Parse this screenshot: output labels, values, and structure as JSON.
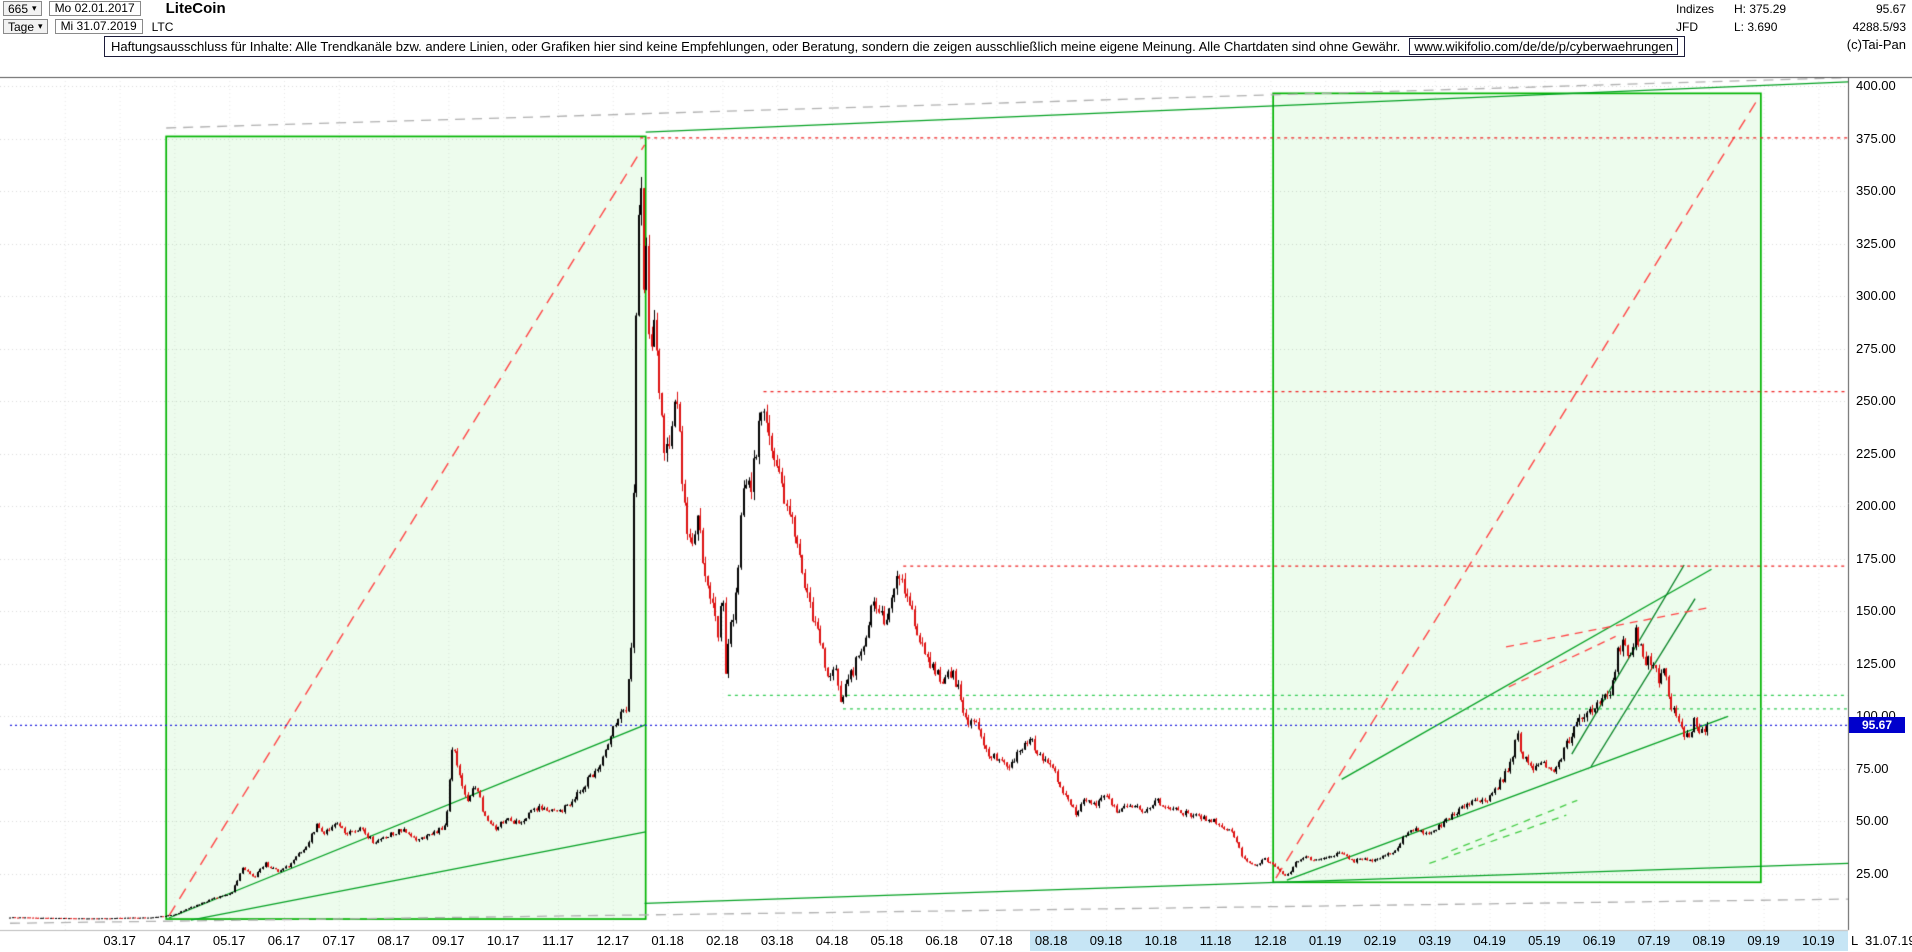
{
  "header": {
    "bars_count": "665",
    "start_date": "Mo 02.01.2017",
    "period": "Tage",
    "end_date": "Mi 31.07.2019",
    "symbol": "LTC",
    "instrument_name": "LiteCoin",
    "category": "Indizes",
    "high": "H: 375.29",
    "last_price": "95.67",
    "feed": "JFD",
    "low": "L: 3.690",
    "extra": "4288.5/93",
    "copyright": "(c)Tai-Pan"
  },
  "icons": {
    "chevron_down": "▾"
  },
  "disclaimer": {
    "text": "Haftungsausschluss für Inhalte: Alle Trendkanäle bzw. andere Linien, oder Grafiken hier sind keine Empfehlungen, oder Beratung, sondern die zeigen ausschließlich meine eigene Meinung. Alle Chartdaten sind ohne Gewähr.",
    "url": "www.wikifolio.com/de/de/p/cyberwaehrungen"
  },
  "footer": {
    "last_label": "L  31.07.19"
  },
  "chart_data": {
    "type": "candlestick",
    "title": "LiteCoin (LTC) Tageschart 02.01.2017 - 31.07.2019",
    "instrument": "LiteCoin",
    "symbol": "LTC",
    "period": "Tage",
    "bar_count": 665,
    "high": 375.29,
    "low": 3.69,
    "last_price": 95.67,
    "last_price_label": "95.67",
    "y_axis": {
      "min": 25,
      "max": 400,
      "step": 25,
      "ticks": [
        400,
        375,
        350,
        325,
        300,
        275,
        250,
        225,
        200,
        175,
        150,
        125,
        100,
        75,
        50,
        25
      ]
    },
    "x_axis": {
      "labels": [
        "03.17",
        "04.17",
        "05.17",
        "06.17",
        "07.17",
        "08.17",
        "09.17",
        "10.17",
        "11.17",
        "12.17",
        "01.18",
        "02.18",
        "03.18",
        "04.18",
        "05.18",
        "06.18",
        "07.18",
        "08.18",
        "09.18",
        "10.18",
        "11.18",
        "12.18",
        "01.19",
        "02.19",
        "03.19",
        "04.19",
        "05.19",
        "06.19",
        "07.19",
        "08.19",
        "09.19",
        "10.19"
      ],
      "first_label_month_index": 2,
      "highlight_start_month": 18.62
    },
    "price_path": [
      [
        0,
        4.3
      ],
      [
        0.5,
        4.1
      ],
      [
        1,
        3.9
      ],
      [
        1.5,
        3.75
      ],
      [
        2,
        4
      ],
      [
        2.6,
        4.3
      ],
      [
        3,
        5.5
      ],
      [
        3.2,
        8
      ],
      [
        3.5,
        11
      ],
      [
        3.8,
        14
      ],
      [
        4.05,
        16
      ],
      [
        4.25,
        28
      ],
      [
        4.45,
        23
      ],
      [
        4.65,
        30
      ],
      [
        4.9,
        26
      ],
      [
        5.1,
        29
      ],
      [
        5.4,
        38
      ],
      [
        5.6,
        48
      ],
      [
        5.75,
        44
      ],
      [
        5.95,
        50
      ],
      [
        6.15,
        44
      ],
      [
        6.4,
        46
      ],
      [
        6.65,
        40
      ],
      [
        6.9,
        43
      ],
      [
        7.15,
        46
      ],
      [
        7.4,
        41
      ],
      [
        7.7,
        44
      ],
      [
        7.95,
        48
      ],
      [
        8.08,
        86
      ],
      [
        8.2,
        72
      ],
      [
        8.35,
        60
      ],
      [
        8.5,
        68
      ],
      [
        8.65,
        54
      ],
      [
        8.85,
        47
      ],
      [
        9.05,
        51
      ],
      [
        9.3,
        49
      ],
      [
        9.55,
        56
      ],
      [
        9.75,
        57
      ],
      [
        10,
        54
      ],
      [
        10.3,
        61
      ],
      [
        10.55,
        70
      ],
      [
        10.75,
        74
      ],
      [
        10.95,
        92
      ],
      [
        11.1,
        100
      ],
      [
        11.25,
        105
      ],
      [
        11.35,
        142
      ],
      [
        11.42,
        290
      ],
      [
        11.5,
        375
      ],
      [
        11.56,
        305
      ],
      [
        11.62,
        330
      ],
      [
        11.68,
        265
      ],
      [
        11.75,
        288
      ],
      [
        11.85,
        248
      ],
      [
        11.95,
        228
      ],
      [
        12.05,
        235
      ],
      [
        12.12,
        252
      ],
      [
        12.2,
        238
      ],
      [
        12.35,
        188
      ],
      [
        12.45,
        178
      ],
      [
        12.55,
        196
      ],
      [
        12.65,
        172
      ],
      [
        12.8,
        158
      ],
      [
        12.92,
        136
      ],
      [
        13,
        162
      ],
      [
        13.06,
        118
      ],
      [
        13.12,
        136
      ],
      [
        13.25,
        158
      ],
      [
        13.4,
        218
      ],
      [
        13.5,
        207
      ],
      [
        13.62,
        228
      ],
      [
        13.72,
        252
      ],
      [
        13.78,
        240
      ],
      [
        13.9,
        222
      ],
      [
        14.05,
        212
      ],
      [
        14.2,
        198
      ],
      [
        14.35,
        182
      ],
      [
        14.55,
        158
      ],
      [
        14.75,
        138
      ],
      [
        14.95,
        118
      ],
      [
        15.05,
        122
      ],
      [
        15.15,
        108
      ],
      [
        15.3,
        116
      ],
      [
        15.45,
        126
      ],
      [
        15.6,
        138
      ],
      [
        15.75,
        152
      ],
      [
        15.95,
        146
      ],
      [
        16.1,
        155
      ],
      [
        16.25,
        170
      ],
      [
        16.4,
        152
      ],
      [
        16.6,
        138
      ],
      [
        16.8,
        124
      ],
      [
        17,
        118
      ],
      [
        17.2,
        122
      ],
      [
        17.45,
        99
      ],
      [
        17.65,
        95
      ],
      [
        17.85,
        83
      ],
      [
        18.05,
        79
      ],
      [
        18.25,
        76
      ],
      [
        18.45,
        84
      ],
      [
        18.65,
        88
      ],
      [
        18.85,
        79
      ],
      [
        19.05,
        75
      ],
      [
        19.25,
        62
      ],
      [
        19.45,
        54
      ],
      [
        19.6,
        60
      ],
      [
        19.8,
        57
      ],
      [
        20,
        63
      ],
      [
        20.2,
        54
      ],
      [
        20.45,
        58
      ],
      [
        20.7,
        54
      ],
      [
        20.9,
        60
      ],
      [
        21.1,
        57
      ],
      [
        21.4,
        54
      ],
      [
        21.7,
        52
      ],
      [
        22,
        50
      ],
      [
        22.3,
        44
      ],
      [
        22.5,
        33
      ],
      [
        22.7,
        29
      ],
      [
        22.9,
        32
      ],
      [
        23.1,
        28
      ],
      [
        23.3,
        23.5
      ],
      [
        23.45,
        30
      ],
      [
        23.65,
        33
      ],
      [
        23.85,
        31
      ],
      [
        24.1,
        33
      ],
      [
        24.3,
        35
      ],
      [
        24.5,
        31
      ],
      [
        24.7,
        32
      ],
      [
        24.9,
        31.5
      ],
      [
        25.1,
        34
      ],
      [
        25.3,
        36
      ],
      [
        25.45,
        44
      ],
      [
        25.65,
        46
      ],
      [
        25.85,
        44
      ],
      [
        26.05,
        47
      ],
      [
        26.25,
        51
      ],
      [
        26.45,
        56
      ],
      [
        26.65,
        59
      ],
      [
        26.85,
        60
      ],
      [
        27.05,
        62
      ],
      [
        27.25,
        71
      ],
      [
        27.4,
        79
      ],
      [
        27.5,
        92
      ],
      [
        27.6,
        81
      ],
      [
        27.8,
        74
      ],
      [
        28,
        77
      ],
      [
        28.2,
        73
      ],
      [
        28.4,
        86
      ],
      [
        28.6,
        96
      ],
      [
        28.8,
        101
      ],
      [
        29,
        106
      ],
      [
        29.2,
        112
      ],
      [
        29.35,
        131
      ],
      [
        29.45,
        137
      ],
      [
        29.55,
        124
      ],
      [
        29.65,
        141
      ],
      [
        29.75,
        133
      ],
      [
        29.85,
        127
      ],
      [
        30,
        124
      ],
      [
        30.1,
        117
      ],
      [
        30.2,
        121
      ],
      [
        30.32,
        104
      ],
      [
        30.45,
        98
      ],
      [
        30.55,
        92
      ],
      [
        30.65,
        89
      ],
      [
        30.75,
        98
      ],
      [
        30.85,
        91
      ],
      [
        30.97,
        95.67
      ]
    ],
    "overlays": {
      "boxes": [
        {
          "m1": 2.85,
          "p1": 3.5,
          "m2": 11.6,
          "p2": 376
        },
        {
          "m1": 23.05,
          "p1": 21,
          "m2": 31.95,
          "p2": 396.5
        }
      ],
      "lines": [
        {
          "m1": 2.9,
          "p1": 5,
          "m2": 11.58,
          "p2": 372,
          "color": "#ff4444",
          "dash": [
            12,
            8
          ],
          "w": 1.4
        },
        {
          "m1": 23.1,
          "p1": 23,
          "m2": 31.9,
          "p2": 394,
          "color": "#ff4444",
          "dash": [
            12,
            8
          ],
          "w": 1.4
        },
        {
          "m1": 2.85,
          "p1": 380,
          "m2": 33.55,
          "p2": 404,
          "color": "#b0b0b0",
          "dash": [
            10,
            7
          ],
          "w": 1.3
        },
        {
          "m1": 0,
          "p1": 1.5,
          "m2": 33.55,
          "p2": 13,
          "color": "#b0b0b0",
          "dash": [
            10,
            7
          ],
          "w": 1.3
        },
        {
          "m1": 11.6,
          "p1": 378,
          "m2": 33.55,
          "p2": 402,
          "color": "#00a020",
          "w": 1.3
        },
        {
          "m1": 11.58,
          "p1": 11,
          "m2": 33.55,
          "p2": 30,
          "color": "#00a020",
          "w": 1.3
        },
        {
          "m1": 2.9,
          "p1": 4,
          "m2": 11.6,
          "p2": 96,
          "color": "#00a020",
          "w": 1.3
        },
        {
          "m1": 3.3,
          "p1": 3,
          "m2": 11.6,
          "p2": 45,
          "color": "#00a020",
          "w": 1.3
        },
        {
          "m1": 24.3,
          "p1": 70,
          "m2": 31.05,
          "p2": 170,
          "color": "#00a020",
          "w": 1.3
        },
        {
          "m1": 23.3,
          "p1": 22,
          "m2": 31.35,
          "p2": 100,
          "color": "#00a020",
          "w": 1.3
        },
        {
          "m1": 28.5,
          "p1": 82,
          "m2": 30.55,
          "p2": 172,
          "color": "#008020",
          "w": 1.3
        },
        {
          "m1": 28.85,
          "p1": 76,
          "m2": 30.75,
          "p2": 156,
          "color": "#008020",
          "w": 1.3
        },
        {
          "m1": 27.3,
          "p1": 133,
          "m2": 31.05,
          "p2": 152,
          "color": "#ff4444",
          "dash": [
            8,
            6
          ],
          "w": 1.3
        },
        {
          "m1": 27.35,
          "p1": 114,
          "m2": 29.3,
          "p2": 138,
          "color": "#ff4444",
          "dash": [
            8,
            6
          ],
          "w": 1.3
        },
        {
          "m1": 25.9,
          "p1": 30,
          "m2": 28.4,
          "p2": 53,
          "color": "#44cc44",
          "dash": [
            7,
            6
          ],
          "w": 1.3
        },
        {
          "m1": 26.3,
          "p1": 36,
          "m2": 28.6,
          "p2": 60,
          "color": "#44cc44",
          "dash": [
            7,
            6
          ],
          "w": 1.3
        }
      ],
      "hlines": [
        {
          "p": 375.3,
          "m1": 11.5,
          "color": "#ee2222",
          "dash": [
            3,
            4
          ],
          "w": 1.2
        },
        {
          "p": 254.5,
          "m1": 13.75,
          "color": "#ee2222",
          "dash": [
            3,
            4
          ],
          "w": 1.2
        },
        {
          "p": 171.5,
          "m1": 16.3,
          "color": "#ee2222",
          "dash": [
            3,
            4
          ],
          "w": 1.2
        },
        {
          "p": 110,
          "m1": 13.1,
          "color": "#33cc55",
          "dash": [
            3,
            4
          ],
          "w": 1.2
        },
        {
          "p": 103.5,
          "m1": 15.2,
          "color": "#33cc55",
          "dash": [
            3,
            4
          ],
          "w": 1.2
        },
        {
          "p": 95.67,
          "m1": 0,
          "color": "#2222dd",
          "dash": [
            2,
            3
          ],
          "w": 1.4
        }
      ]
    },
    "colors": {
      "up": "#000000",
      "down": "#dd1111",
      "box_stroke": "#00b400",
      "box_fill": "rgba(0,210,0,0.07)",
      "grid": "#d9d9d9",
      "vgrid": "#e7e7e7",
      "axis": "#555555",
      "badge_bg": "#0000cc",
      "x_highlight": "#c6e5f5"
    }
  }
}
